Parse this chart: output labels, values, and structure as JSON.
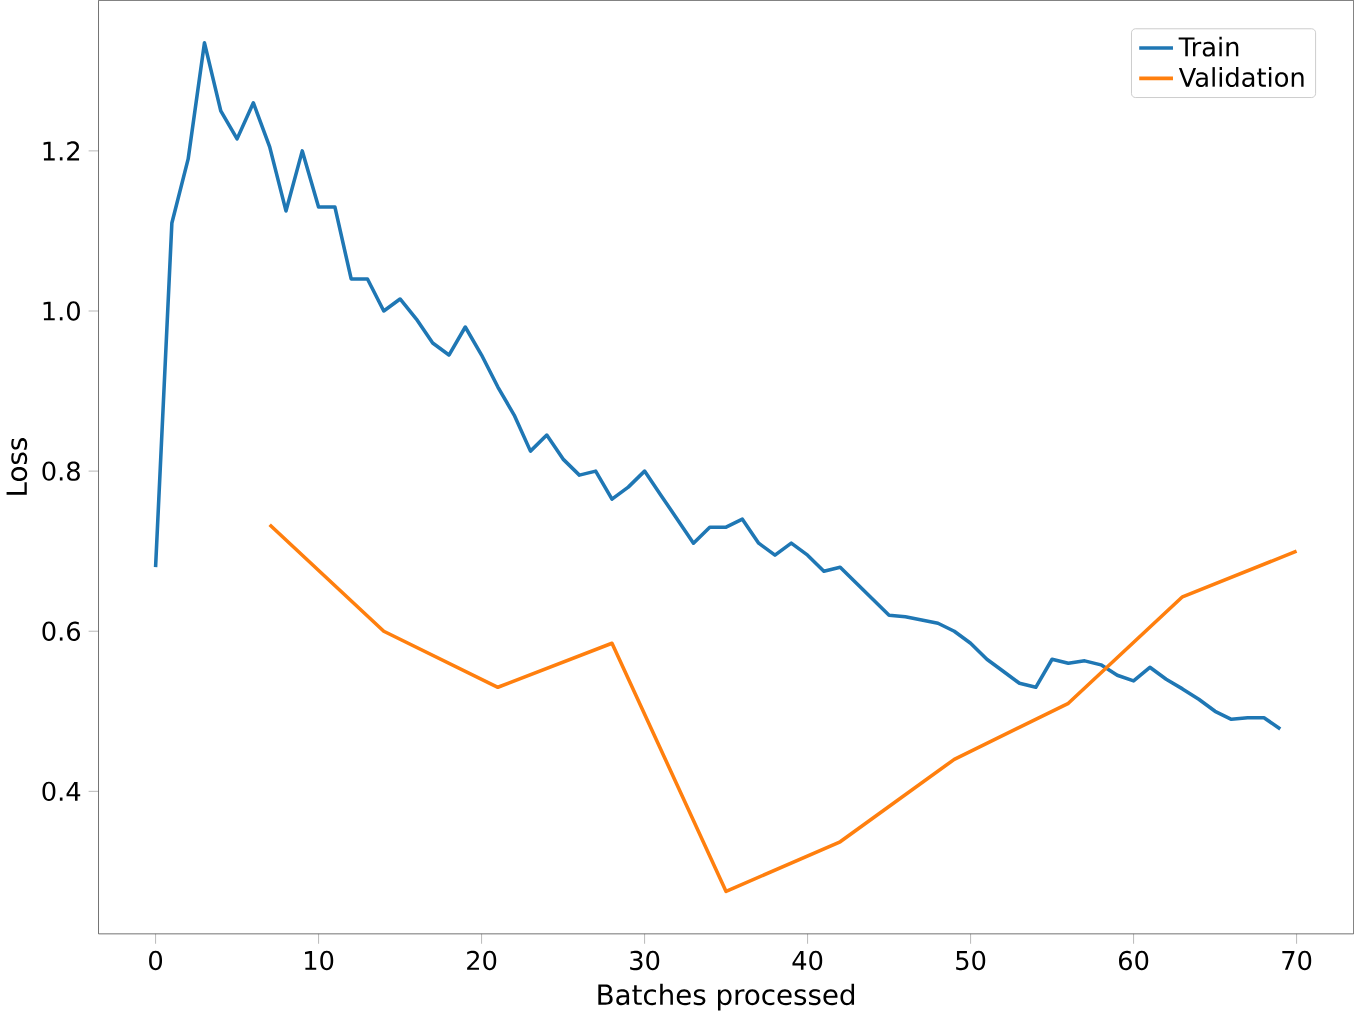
{
  "chart_data": {
    "type": "line",
    "xlabel": "Batches processed",
    "ylabel": "Loss",
    "xlim": [
      -3.5,
      73.5
    ],
    "ylim": [
      0.222,
      1.388
    ],
    "xticks": [
      0,
      10,
      20,
      30,
      40,
      50,
      60,
      70
    ],
    "yticks": [
      0.4,
      0.6,
      0.8,
      {
        "value": 1.0,
        "label": "1.0"
      },
      1.2
    ],
    "legend": "top right",
    "grid": false,
    "line_style": "solid",
    "marker": "none",
    "series": [
      {
        "name": "Train",
        "color": "#1f77b4",
        "x": [
          0,
          1,
          2,
          3,
          4,
          5,
          6,
          7,
          8,
          9,
          10,
          11,
          12,
          13,
          14,
          15,
          16,
          17,
          18,
          19,
          20,
          21,
          22,
          23,
          24,
          25,
          26,
          27,
          28,
          29,
          30,
          31,
          32,
          33,
          34,
          35,
          36,
          37,
          38,
          39,
          40,
          41,
          42,
          43,
          44,
          45,
          46,
          47,
          48,
          49,
          50,
          51,
          52,
          53,
          54,
          55,
          56,
          57,
          58,
          59,
          60,
          61,
          62,
          63,
          64,
          65,
          66,
          67,
          68,
          69
        ],
        "values": [
          0.68,
          1.11,
          1.19,
          1.335,
          1.25,
          1.215,
          1.26,
          1.205,
          1.125,
          1.2,
          1.13,
          1.13,
          1.04,
          1.04,
          1.0,
          1.015,
          0.99,
          0.96,
          0.945,
          0.98,
          0.945,
          0.905,
          0.87,
          0.825,
          0.845,
          0.815,
          0.795,
          0.8,
          0.765,
          0.78,
          0.8,
          0.77,
          0.74,
          0.71,
          0.73,
          0.73,
          0.74,
          0.71,
          0.695,
          0.71,
          0.695,
          0.675,
          0.68,
          0.66,
          0.64,
          0.62,
          0.618,
          0.614,
          0.61,
          0.6,
          0.585,
          0.565,
          0.55,
          0.535,
          0.53,
          0.565,
          0.56,
          0.563,
          0.558,
          0.545,
          0.538,
          0.555,
          0.54,
          0.528,
          0.515,
          0.5,
          0.49,
          0.492,
          0.492,
          0.478
        ]
      },
      {
        "name": "Validation",
        "color": "#ff7f0e",
        "x": [
          7,
          14,
          21,
          28,
          35,
          42,
          49,
          56,
          63,
          70
        ],
        "values": [
          0.733,
          0.6,
          0.53,
          0.585,
          0.275,
          0.337,
          0.44,
          0.51,
          0.643,
          0.7
        ]
      }
    ]
  }
}
